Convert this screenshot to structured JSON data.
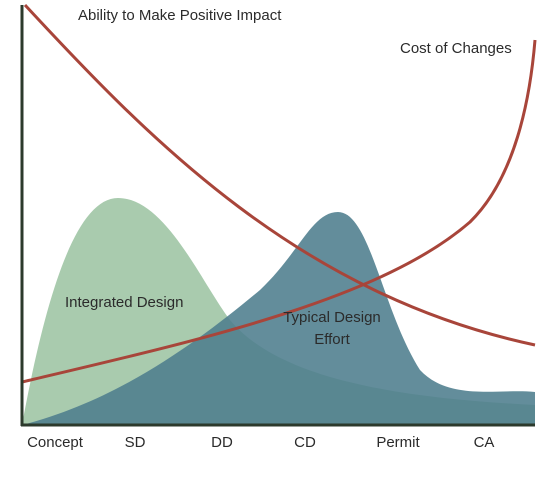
{
  "curves": {
    "ability": "Ability to Make Positive Impact",
    "cost": "Cost of Changes",
    "integrated": "Integrated Design",
    "typical": [
      "Typical Design",
      "Effort"
    ]
  },
  "phases": [
    "Concept",
    "SD",
    "DD",
    "CD",
    "Permit",
    "CA"
  ]
}
